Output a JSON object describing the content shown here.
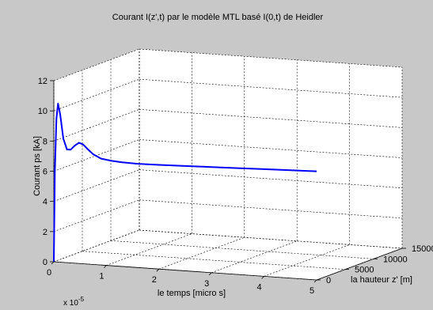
{
  "chart_data": {
    "type": "line",
    "title": "Courant I(z',t) par le modèle MTL basé I(0,t) de  Heidler",
    "xlabel": "le temps  [micro s]",
    "ylabel": "la hauteur z' [m]",
    "zlabel": "Courant ps [kA]",
    "x_exponent_label": "x 10",
    "x_exponent_power": "-5",
    "x_ticks": [
      "0",
      "1",
      "2",
      "3",
      "4",
      "5"
    ],
    "y_ticks": [
      "0",
      "5000",
      "10000",
      "15000"
    ],
    "z_ticks": [
      "0",
      "2",
      "4",
      "6",
      "8",
      "10",
      "12"
    ],
    "xlim": [
      0,
      5
    ],
    "ylim": [
      0,
      15000
    ],
    "zlim": [
      0,
      12
    ],
    "grid": true,
    "view": "3d",
    "series": [
      {
        "color": "#0000ff",
        "points": [
          {
            "x": 0.0,
            "y": 0,
            "z": 0.0
          },
          {
            "x": 0.02,
            "y": 0,
            "z": 6.0
          },
          {
            "x": 0.05,
            "y": 0,
            "z": 9.5
          },
          {
            "x": 0.08,
            "y": 0,
            "z": 10.5
          },
          {
            "x": 0.12,
            "y": 0,
            "z": 9.8
          },
          {
            "x": 0.18,
            "y": 0,
            "z": 8.2
          },
          {
            "x": 0.25,
            "y": 0,
            "z": 7.5
          },
          {
            "x": 0.32,
            "y": 0,
            "z": 7.5
          },
          {
            "x": 0.4,
            "y": 0,
            "z": 7.8
          },
          {
            "x": 0.48,
            "y": 0,
            "z": 8.0
          },
          {
            "x": 0.56,
            "y": 0,
            "z": 7.9
          },
          {
            "x": 0.65,
            "y": 0,
            "z": 7.6
          },
          {
            "x": 0.75,
            "y": 0,
            "z": 7.3
          },
          {
            "x": 0.9,
            "y": 0,
            "z": 7.05
          },
          {
            "x": 1.1,
            "y": 0,
            "z": 6.95
          },
          {
            "x": 1.3,
            "y": 0,
            "z": 6.9
          },
          {
            "x": 1.6,
            "y": 0,
            "z": 6.88
          },
          {
            "x": 2.0,
            "y": 0,
            "z": 6.9
          },
          {
            "x": 2.5,
            "y": 0,
            "z": 6.95
          },
          {
            "x": 3.0,
            "y": 0,
            "z": 7.0
          },
          {
            "x": 3.5,
            "y": 0,
            "z": 7.05
          },
          {
            "x": 4.0,
            "y": 0,
            "z": 7.1
          },
          {
            "x": 4.5,
            "y": 0,
            "z": 7.15
          },
          {
            "x": 5.0,
            "y": 0,
            "z": 7.2
          }
        ]
      }
    ]
  }
}
